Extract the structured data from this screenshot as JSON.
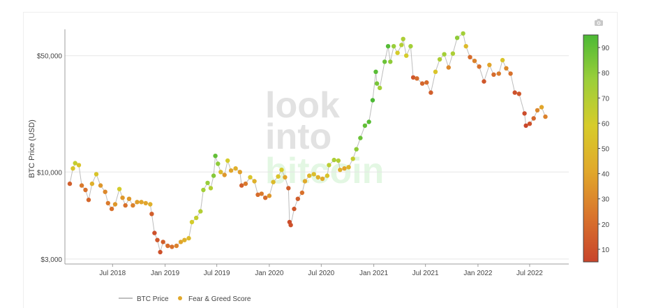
{
  "chart_data": {
    "type": "scatter",
    "title": "",
    "xlabel": "",
    "ylabel": "BTC Price (USD)",
    "y_scale": "log",
    "ylim": [
      2800,
      72000
    ],
    "xlim": [
      "2018-01-15",
      "2022-11-15"
    ],
    "y_ticks": [
      {
        "value": 3000,
        "label": "$3,000"
      },
      {
        "value": 10000,
        "label": "$10,000"
      },
      {
        "value": 50000,
        "label": "$50,000"
      }
    ],
    "x_ticks": [
      {
        "date": "2018-07-01",
        "label": "Jul 2018"
      },
      {
        "date": "2019-01-01",
        "label": "Jan 2019"
      },
      {
        "date": "2019-07-01",
        "label": "Jul 2019"
      },
      {
        "date": "2020-01-01",
        "label": "Jan 2020"
      },
      {
        "date": "2020-07-01",
        "label": "Jul 2020"
      },
      {
        "date": "2021-01-01",
        "label": "Jan 2021"
      },
      {
        "date": "2021-07-01",
        "label": "Jul 2021"
      },
      {
        "date": "2022-01-01",
        "label": "Jan 2022"
      },
      {
        "date": "2022-07-01",
        "label": "Jul 2022"
      }
    ],
    "colorbar": {
      "range": [
        5,
        95
      ],
      "ticks": [
        10,
        20,
        30,
        40,
        50,
        60,
        70,
        80,
        90
      ],
      "colorscale": [
        "#c8442b",
        "#d9742c",
        "#e1a82b",
        "#d7cc2a",
        "#9ccf3a",
        "#4cb935"
      ]
    },
    "legend": {
      "placement": "bottom-left",
      "entries": [
        "BTC Price",
        "Fear & Greed Score"
      ]
    },
    "grid": true,
    "series": [
      {
        "name": "BTC Price",
        "points": [
          [
            "2018-02-01",
            8500,
            15
          ],
          [
            "2018-02-12",
            10500,
            55
          ],
          [
            "2018-02-20",
            11300,
            65
          ],
          [
            "2018-03-05",
            11000,
            55
          ],
          [
            "2018-03-15",
            8300,
            25
          ],
          [
            "2018-03-28",
            7800,
            22
          ],
          [
            "2018-04-08",
            6800,
            18
          ],
          [
            "2018-04-20",
            8500,
            45
          ],
          [
            "2018-05-05",
            9700,
            55
          ],
          [
            "2018-05-20",
            8300,
            35
          ],
          [
            "2018-06-05",
            7600,
            30
          ],
          [
            "2018-06-15",
            6500,
            25
          ],
          [
            "2018-06-28",
            6000,
            22
          ],
          [
            "2018-07-10",
            6400,
            35
          ],
          [
            "2018-07-25",
            7900,
            60
          ],
          [
            "2018-08-05",
            7000,
            35
          ],
          [
            "2018-08-15",
            6300,
            22
          ],
          [
            "2018-08-28",
            6900,
            35
          ],
          [
            "2018-09-10",
            6300,
            28
          ],
          [
            "2018-09-25",
            6600,
            38
          ],
          [
            "2018-10-10",
            6600,
            40
          ],
          [
            "2018-10-25",
            6500,
            40
          ],
          [
            "2018-11-10",
            6400,
            45
          ],
          [
            "2018-11-15",
            5600,
            15
          ],
          [
            "2018-11-25",
            4300,
            10
          ],
          [
            "2018-12-05",
            3900,
            12
          ],
          [
            "2018-12-15",
            3300,
            10
          ],
          [
            "2018-12-25",
            3800,
            15
          ],
          [
            "2019-01-10",
            3600,
            20
          ],
          [
            "2019-01-25",
            3550,
            22
          ],
          [
            "2019-02-10",
            3600,
            28
          ],
          [
            "2019-02-25",
            3800,
            40
          ],
          [
            "2019-03-10",
            3900,
            45
          ],
          [
            "2019-03-25",
            4000,
            50
          ],
          [
            "2019-04-05",
            5000,
            60
          ],
          [
            "2019-04-20",
            5300,
            65
          ],
          [
            "2019-05-05",
            5800,
            70
          ],
          [
            "2019-05-15",
            7800,
            75
          ],
          [
            "2019-05-30",
            8600,
            78
          ],
          [
            "2019-06-10",
            8000,
            70
          ],
          [
            "2019-06-20",
            9500,
            82
          ],
          [
            "2019-06-26",
            12500,
            90
          ],
          [
            "2019-07-05",
            11200,
            80
          ],
          [
            "2019-07-15",
            10000,
            50
          ],
          [
            "2019-07-28",
            9600,
            35
          ],
          [
            "2019-08-08",
            11700,
            60
          ],
          [
            "2019-08-20",
            10200,
            40
          ],
          [
            "2019-09-05",
            10500,
            45
          ],
          [
            "2019-09-20",
            10000,
            38
          ],
          [
            "2019-09-26",
            8300,
            15
          ],
          [
            "2019-10-10",
            8500,
            25
          ],
          [
            "2019-10-26",
            9300,
            55
          ],
          [
            "2019-11-10",
            8800,
            45
          ],
          [
            "2019-11-22",
            7300,
            20
          ],
          [
            "2019-12-05",
            7400,
            25
          ],
          [
            "2019-12-18",
            7000,
            20
          ],
          [
            "2020-01-01",
            7200,
            35
          ],
          [
            "2020-01-15",
            8700,
            50
          ],
          [
            "2020-02-01",
            9400,
            55
          ],
          [
            "2020-02-13",
            10300,
            60
          ],
          [
            "2020-02-25",
            9300,
            40
          ],
          [
            "2020-03-08",
            8000,
            15
          ],
          [
            "2020-03-12",
            5000,
            8
          ],
          [
            "2020-03-16",
            4800,
            10
          ],
          [
            "2020-03-28",
            6000,
            12
          ],
          [
            "2020-04-10",
            6900,
            15
          ],
          [
            "2020-04-25",
            7500,
            22
          ],
          [
            "2020-05-05",
            8800,
            42
          ],
          [
            "2020-05-20",
            9500,
            48
          ],
          [
            "2020-06-05",
            9700,
            52
          ],
          [
            "2020-06-20",
            9300,
            45
          ],
          [
            "2020-07-05",
            9100,
            42
          ],
          [
            "2020-07-22",
            9500,
            55
          ],
          [
            "2020-07-28",
            11000,
            68
          ],
          [
            "2020-08-15",
            11800,
            72
          ],
          [
            "2020-08-30",
            11700,
            70
          ],
          [
            "2020-09-05",
            10300,
            45
          ],
          [
            "2020-09-20",
            10500,
            40
          ],
          [
            "2020-10-05",
            10700,
            48
          ],
          [
            "2020-10-20",
            12000,
            65
          ],
          [
            "2020-11-01",
            13700,
            80
          ],
          [
            "2020-11-15",
            16000,
            88
          ],
          [
            "2020-12-01",
            19000,
            90
          ],
          [
            "2020-12-15",
            20000,
            92
          ],
          [
            "2020-12-28",
            27000,
            95
          ],
          [
            "2021-01-08",
            40000,
            92
          ],
          [
            "2021-01-12",
            34000,
            85
          ],
          [
            "2021-01-22",
            32000,
            75
          ],
          [
            "2021-02-08",
            46000,
            88
          ],
          [
            "2021-02-20",
            57000,
            93
          ],
          [
            "2021-02-28",
            46000,
            80
          ],
          [
            "2021-03-12",
            57000,
            78
          ],
          [
            "2021-03-25",
            52000,
            60
          ],
          [
            "2021-04-08",
            58000,
            70
          ],
          [
            "2021-04-14",
            63000,
            72
          ],
          [
            "2021-04-25",
            50000,
            60
          ],
          [
            "2021-05-10",
            57000,
            75
          ],
          [
            "2021-05-19",
            37000,
            12
          ],
          [
            "2021-06-01",
            36500,
            20
          ],
          [
            "2021-06-20",
            34000,
            18
          ],
          [
            "2021-07-05",
            34500,
            20
          ],
          [
            "2021-07-20",
            30000,
            15
          ],
          [
            "2021-08-05",
            40000,
            55
          ],
          [
            "2021-08-20",
            47500,
            72
          ],
          [
            "2021-09-05",
            51000,
            75
          ],
          [
            "2021-09-20",
            42500,
            30
          ],
          [
            "2021-10-05",
            51500,
            72
          ],
          [
            "2021-10-20",
            64000,
            80
          ],
          [
            "2021-11-10",
            68000,
            75
          ],
          [
            "2021-11-20",
            57000,
            50
          ],
          [
            "2021-12-04",
            49000,
            20
          ],
          [
            "2021-12-20",
            46500,
            28
          ],
          [
            "2022-01-05",
            43000,
            22
          ],
          [
            "2022-01-22",
            35000,
            12
          ],
          [
            "2022-02-10",
            44000,
            40
          ],
          [
            "2022-02-25",
            38500,
            20
          ],
          [
            "2022-03-15",
            39000,
            25
          ],
          [
            "2022-03-28",
            47000,
            55
          ],
          [
            "2022-04-10",
            42000,
            30
          ],
          [
            "2022-04-25",
            39000,
            22
          ],
          [
            "2022-05-10",
            30000,
            10
          ],
          [
            "2022-05-25",
            29500,
            12
          ],
          [
            "2022-06-13",
            22500,
            8
          ],
          [
            "2022-06-18",
            19000,
            6
          ],
          [
            "2022-07-01",
            19500,
            10
          ],
          [
            "2022-07-15",
            21000,
            18
          ],
          [
            "2022-07-28",
            23500,
            30
          ],
          [
            "2022-08-12",
            24500,
            40
          ],
          [
            "2022-08-25",
            21500,
            28
          ]
        ]
      }
    ]
  },
  "watermark": {
    "line1": "look",
    "line2": "into",
    "line3": "bitcoin"
  },
  "toolbar": {
    "icon": "camera-icon"
  }
}
